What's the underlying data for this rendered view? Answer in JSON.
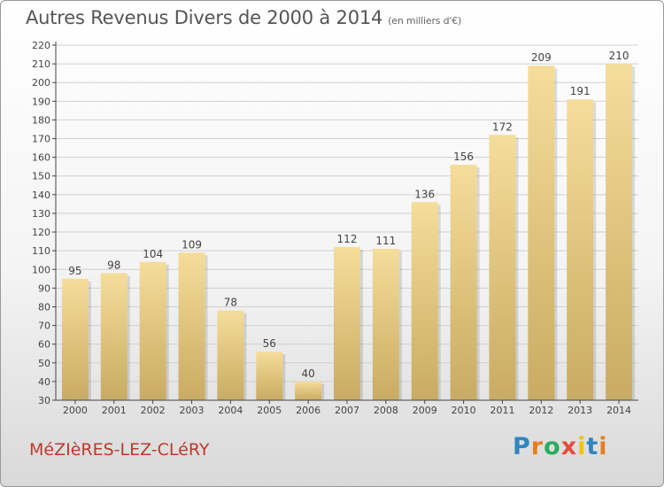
{
  "title": "Autres Revenus Divers de 2000 à 2014",
  "unit_note": "(en milliers d'€)",
  "commune": "MéZIèRES-LEZ-CLéRY",
  "logo": {
    "letters": [
      {
        "ch": "P",
        "color": "#2e86c1"
      },
      {
        "ch": "r",
        "color": "#e67e22"
      },
      {
        "ch": "o",
        "color": "#27ae60"
      },
      {
        "ch": "x",
        "color": "#e74c3c"
      },
      {
        "ch": "i",
        "color": "#f1c40f"
      },
      {
        "ch": "t",
        "color": "#2e86c1"
      },
      {
        "ch": "i",
        "color": "#e67e22"
      }
    ]
  },
  "colors": {
    "bar_light": "#f5dd9a",
    "bar_dark": "#c9ab63",
    "grid": "#d0d0d0",
    "axis": "#444444",
    "label": "#444444"
  },
  "chart_data": {
    "type": "bar",
    "categories": [
      "2000",
      "2001",
      "2002",
      "2003",
      "2004",
      "2005",
      "2006",
      "2007",
      "2008",
      "2009",
      "2010",
      "2011",
      "2012",
      "2013",
      "2014"
    ],
    "values": [
      95,
      98,
      104,
      109,
      78,
      56,
      40,
      112,
      111,
      136,
      156,
      172,
      209,
      191,
      210
    ],
    "ylim": [
      30,
      220
    ],
    "yticks": [
      30,
      40,
      50,
      60,
      70,
      80,
      90,
      100,
      110,
      120,
      130,
      140,
      150,
      160,
      170,
      180,
      190,
      200,
      210,
      220
    ],
    "grid": true,
    "legend": "none"
  }
}
